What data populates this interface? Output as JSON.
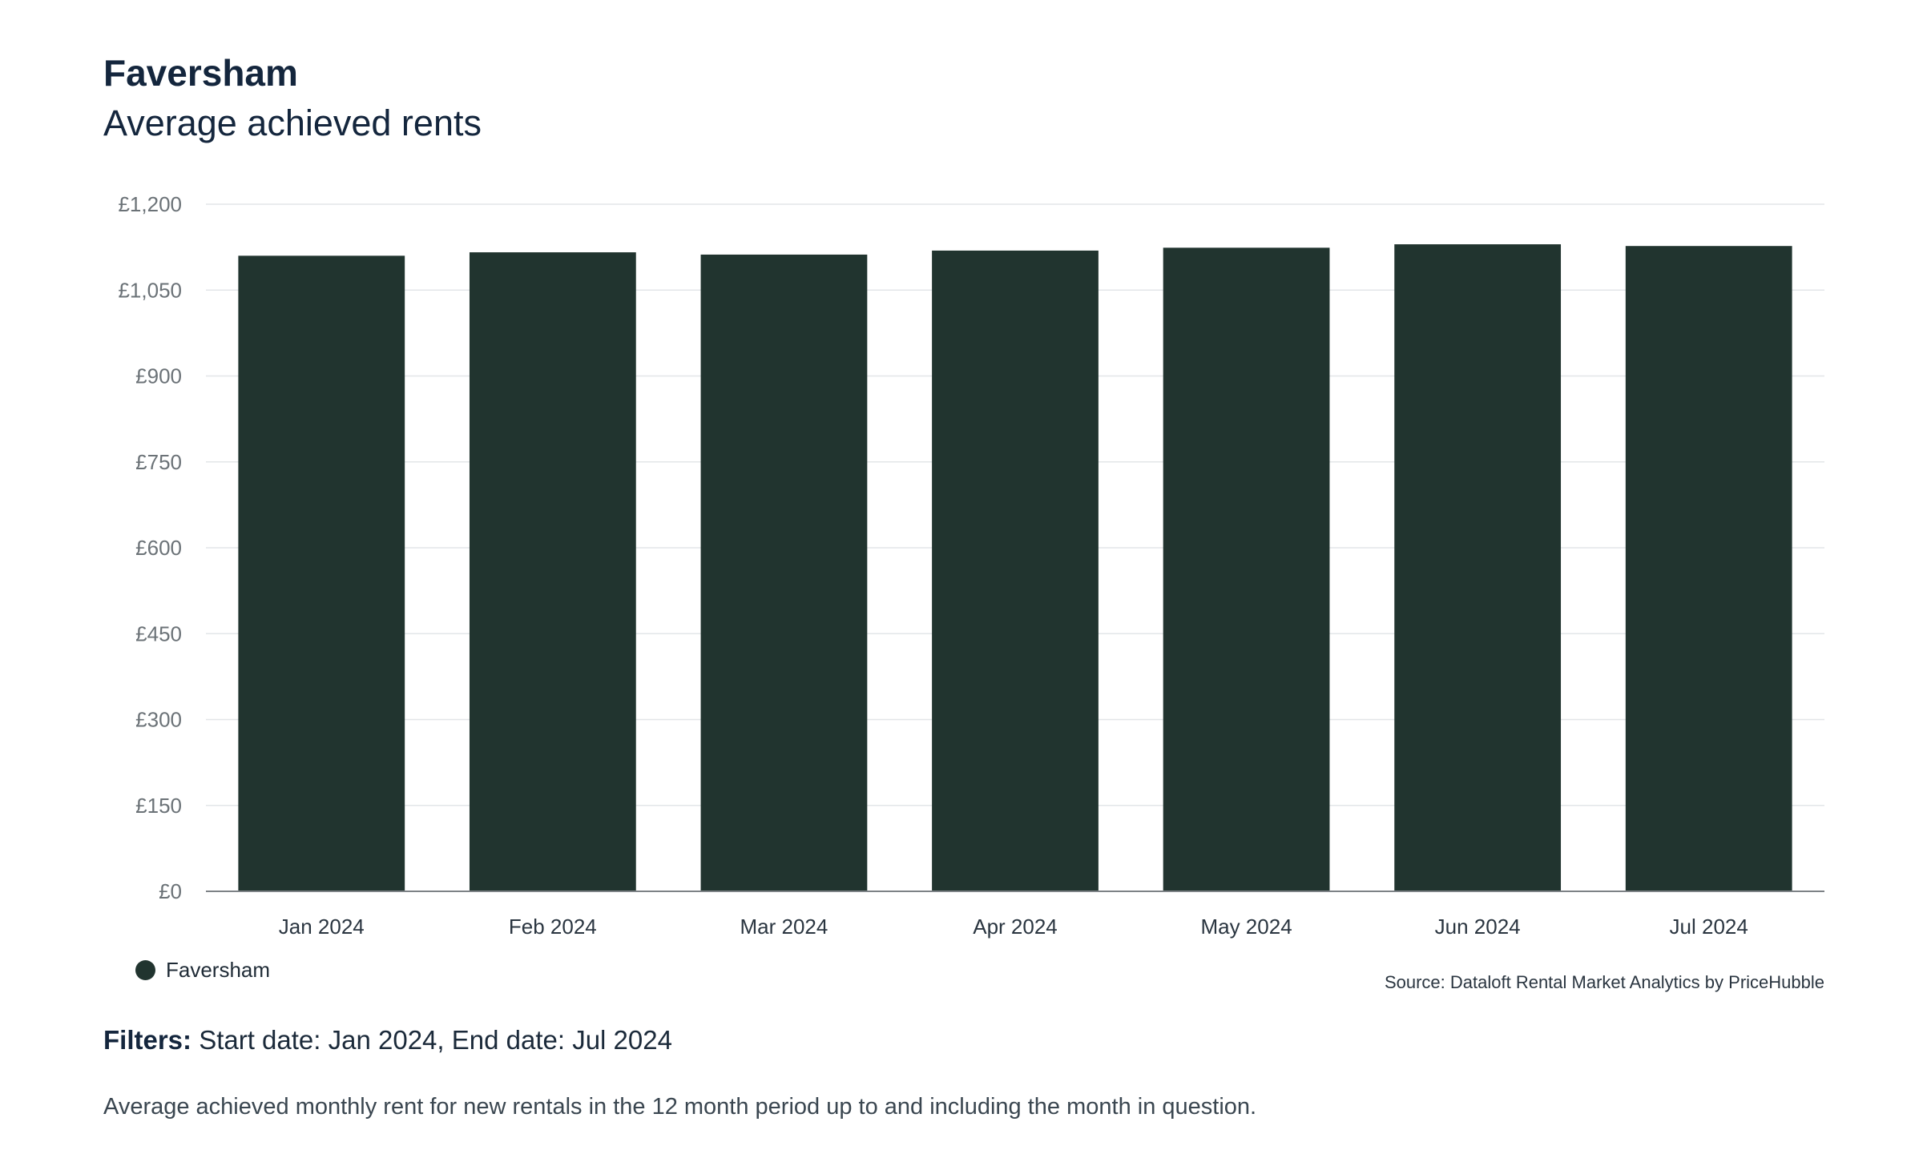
{
  "header": {
    "title": "Faversham",
    "subtitle": "Average achieved rents"
  },
  "chart_data": {
    "type": "bar",
    "categories": [
      "Jan 2024",
      "Feb 2024",
      "Mar 2024",
      "Apr 2024",
      "May 2024",
      "Jun 2024",
      "Jul 2024"
    ],
    "series": [
      {
        "name": "Faversham",
        "values": [
          1110,
          1116,
          1112,
          1119,
          1124,
          1130,
          1127
        ],
        "color": "#21342f"
      }
    ],
    "ylim": [
      0,
      1200
    ],
    "yticks": [
      0,
      150,
      300,
      450,
      600,
      750,
      900,
      1050,
      1200
    ],
    "ytick_labels": [
      "£0",
      "£150",
      "£300",
      "£450",
      "£600",
      "£750",
      "£900",
      "£1,050",
      "£1,200"
    ],
    "grid": true,
    "legend_position": "bottom-left"
  },
  "legend": {
    "label": "Faversham",
    "color": "#21342f"
  },
  "source": "Source: Dataloft Rental Market Analytics by PriceHubble",
  "filters": {
    "label": "Filters:",
    "text": " Start date: Jan 2024, End date: Jul 2024"
  },
  "note": "Average achieved monthly rent for new rentals in the 12 month period up to and including the month in question."
}
